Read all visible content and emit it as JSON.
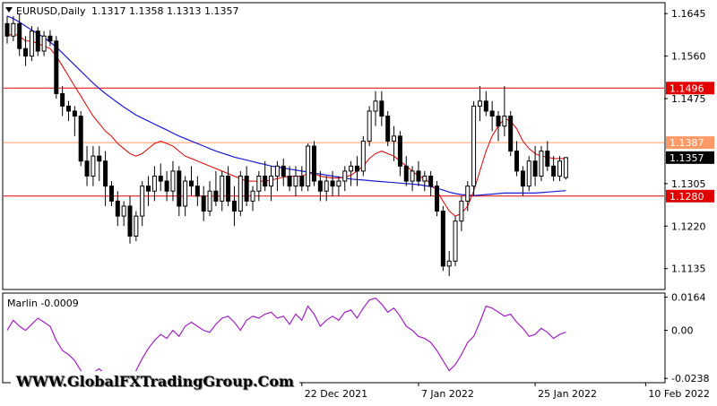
{
  "chart_header": {
    "symbol": "EURUSD,Daily",
    "ohlc": "1.1317 1.1358 1.1313 1.1357"
  },
  "indicator_label": "Marlin -0.0009",
  "watermark": "WWW.GlobalFXTradingGroup.Com",
  "colors": {
    "candle_border": "#000000",
    "bull_fill": "#ffffff",
    "bear_fill": "#000000",
    "ma_fast": "#e00000",
    "ma_slow": "#1a1ad0",
    "level_red": "#e00000",
    "level_salmon": "#ff9966",
    "oscillator": "#a020c0",
    "price_tag": "#000000"
  },
  "chart_data": [
    {
      "type": "candlestick",
      "title": "EURUSD,Daily",
      "y_range": [
        1.1095,
        1.1665
      ],
      "y_ticks": [
        1.1645,
        1.156,
        1.1475,
        1.1305,
        1.122,
        1.1135
      ],
      "x_labels": [
        "22 Dec 2021",
        "7 Jan 2022",
        "25 Jan 2022",
        "10 Feb 2022"
      ],
      "x_label_candle_index": [
        48,
        67,
        86,
        104
      ],
      "levels": [
        {
          "value": 1.1496,
          "label": "1.1496",
          "color": "#e00000",
          "tag_text": "#ffffff"
        },
        {
          "value": 1.1387,
          "label": "1.1387",
          "color": "#ff9966",
          "tag_text": "#ffffff"
        },
        {
          "value": 1.128,
          "label": "1.1280",
          "color": "#e00000",
          "tag_text": "#ffffff"
        }
      ],
      "current_price": {
        "value": 1.1357,
        "label": "1.1357"
      },
      "candles": [
        [
          1.1625,
          1.164,
          1.1585,
          1.16
        ],
        [
          1.16,
          1.164,
          1.159,
          1.1625
        ],
        [
          1.1625,
          1.1645,
          1.156,
          1.1575
        ],
        [
          1.1575,
          1.16,
          1.154,
          1.156
        ],
        [
          1.156,
          1.162,
          1.155,
          1.161
        ],
        [
          1.161,
          1.1618,
          1.156,
          1.157
        ],
        [
          1.157,
          1.161,
          1.156,
          1.16
        ],
        [
          1.16,
          1.1612,
          1.158,
          1.159
        ],
        [
          1.159,
          1.16,
          1.1475,
          1.1485
        ],
        [
          1.1485,
          1.15,
          1.144,
          1.146
        ],
        [
          1.146,
          1.147,
          1.143,
          1.145
        ],
        [
          1.145,
          1.146,
          1.14,
          1.144
        ],
        [
          1.144,
          1.145,
          1.134,
          1.135
        ],
        [
          1.135,
          1.138,
          1.13,
          1.132
        ],
        [
          1.132,
          1.138,
          1.13,
          1.136
        ],
        [
          1.136,
          1.138,
          1.131,
          1.135
        ],
        [
          1.135,
          1.137,
          1.126,
          1.13
        ],
        [
          1.13,
          1.131,
          1.126,
          1.127
        ],
        [
          1.127,
          1.129,
          1.122,
          1.124
        ],
        [
          1.124,
          1.127,
          1.122,
          1.126
        ],
        [
          1.126,
          1.128,
          1.1185,
          1.12
        ],
        [
          1.12,
          1.125,
          1.119,
          1.124
        ],
        [
          1.124,
          1.131,
          1.122,
          1.13
        ],
        [
          1.13,
          1.132,
          1.126,
          1.129
        ],
        [
          1.129,
          1.134,
          1.127,
          1.132
        ],
        [
          1.132,
          1.1345,
          1.129,
          1.131
        ],
        [
          1.131,
          1.133,
          1.127,
          1.129
        ],
        [
          1.129,
          1.135,
          1.127,
          1.133
        ],
        [
          1.133,
          1.134,
          1.124,
          1.126
        ],
        [
          1.126,
          1.132,
          1.124,
          1.131
        ],
        [
          1.131,
          1.134,
          1.128,
          1.13
        ],
        [
          1.13,
          1.132,
          1.126,
          1.128
        ],
        [
          1.128,
          1.13,
          1.123,
          1.125
        ],
        [
          1.125,
          1.131,
          1.124,
          1.129
        ],
        [
          1.129,
          1.133,
          1.126,
          1.127
        ],
        [
          1.127,
          1.133,
          1.125,
          1.132
        ],
        [
          1.132,
          1.134,
          1.126,
          1.127
        ],
        [
          1.127,
          1.13,
          1.122,
          1.125
        ],
        [
          1.125,
          1.133,
          1.124,
          1.132
        ],
        [
          1.132,
          1.134,
          1.126,
          1.127
        ],
        [
          1.127,
          1.13,
          1.125,
          1.129
        ],
        [
          1.129,
          1.133,
          1.127,
          1.132
        ],
        [
          1.132,
          1.135,
          1.129,
          1.13
        ],
        [
          1.13,
          1.134,
          1.127,
          1.132
        ],
        [
          1.132,
          1.135,
          1.129,
          1.134
        ],
        [
          1.134,
          1.1355,
          1.13,
          1.132
        ],
        [
          1.132,
          1.134,
          1.129,
          1.13
        ],
        [
          1.13,
          1.134,
          1.128,
          1.132
        ],
        [
          1.132,
          1.134,
          1.129,
          1.13
        ],
        [
          1.13,
          1.1385,
          1.129,
          1.138
        ],
        [
          1.138,
          1.139,
          1.13,
          1.131
        ],
        [
          1.131,
          1.133,
          1.127,
          1.129
        ],
        [
          1.129,
          1.132,
          1.127,
          1.131
        ],
        [
          1.131,
          1.133,
          1.128,
          1.13
        ],
        [
          1.13,
          1.132,
          1.128,
          1.131
        ],
        [
          1.131,
          1.134,
          1.129,
          1.133
        ],
        [
          1.133,
          1.135,
          1.13,
          1.134
        ],
        [
          1.134,
          1.136,
          1.13,
          1.133
        ],
        [
          1.133,
          1.14,
          1.132,
          1.139
        ],
        [
          1.139,
          1.146,
          1.138,
          1.145
        ],
        [
          1.145,
          1.149,
          1.142,
          1.147
        ],
        [
          1.147,
          1.149,
          1.142,
          1.144
        ],
        [
          1.144,
          1.145,
          1.138,
          1.139
        ],
        [
          1.139,
          1.142,
          1.135,
          1.14
        ],
        [
          1.14,
          1.141,
          1.132,
          1.134
        ],
        [
          1.134,
          1.136,
          1.13,
          1.131
        ],
        [
          1.131,
          1.134,
          1.129,
          1.133
        ],
        [
          1.133,
          1.135,
          1.13,
          1.131
        ],
        [
          1.131,
          1.133,
          1.129,
          1.132
        ],
        [
          1.132,
          1.133,
          1.128,
          1.13
        ],
        [
          1.13,
          1.131,
          1.124,
          1.125
        ],
        [
          1.125,
          1.126,
          1.113,
          1.114
        ],
        [
          1.114,
          1.117,
          1.112,
          1.115
        ],
        [
          1.115,
          1.124,
          1.114,
          1.123
        ],
        [
          1.123,
          1.128,
          1.121,
          1.127
        ],
        [
          1.127,
          1.131,
          1.125,
          1.13
        ],
        [
          1.13,
          1.147,
          1.128,
          1.146
        ],
        [
          1.146,
          1.15,
          1.143,
          1.147
        ],
        [
          1.147,
          1.149,
          1.144,
          1.145
        ],
        [
          1.145,
          1.147,
          1.141,
          1.144
        ],
        [
          1.144,
          1.145,
          1.139,
          1.142
        ],
        [
          1.142,
          1.15,
          1.14,
          1.144
        ],
        [
          1.144,
          1.145,
          1.136,
          1.137
        ],
        [
          1.137,
          1.139,
          1.132,
          1.133
        ],
        [
          1.133,
          1.134,
          1.128,
          1.13
        ],
        [
          1.13,
          1.136,
          1.129,
          1.135
        ],
        [
          1.135,
          1.138,
          1.13,
          1.132
        ],
        [
          1.132,
          1.138,
          1.131,
          1.137
        ],
        [
          1.137,
          1.139,
          1.133,
          1.134
        ],
        [
          1.134,
          1.136,
          1.131,
          1.132
        ],
        [
          1.132,
          1.136,
          1.131,
          1.135
        ],
        [
          1.1317,
          1.1358,
          1.1313,
          1.1357
        ]
      ],
      "ma_fast": [
        1.16,
        1.1605,
        1.16,
        1.159,
        1.159,
        1.1585,
        1.158,
        1.1575,
        1.156,
        1.154,
        1.152,
        1.15,
        1.148,
        1.146,
        1.144,
        1.1425,
        1.141,
        1.14,
        1.1385,
        1.1375,
        1.1365,
        1.136,
        1.1365,
        1.1375,
        1.1385,
        1.139,
        1.1385,
        1.138,
        1.137,
        1.136,
        1.1355,
        1.135,
        1.1345,
        1.134,
        1.1335,
        1.133,
        1.1325,
        1.132,
        1.1315,
        1.131,
        1.131,
        1.131,
        1.131,
        1.1312,
        1.1315,
        1.1318,
        1.132,
        1.132,
        1.132,
        1.1325,
        1.1325,
        1.132,
        1.1318,
        1.1316,
        1.1316,
        1.1318,
        1.1322,
        1.133,
        1.134,
        1.1355,
        1.1365,
        1.137,
        1.1365,
        1.136,
        1.135,
        1.134,
        1.133,
        1.132,
        1.1315,
        1.1305,
        1.129,
        1.127,
        1.125,
        1.124,
        1.1245,
        1.126,
        1.129,
        1.133,
        1.137,
        1.14,
        1.142,
        1.1435,
        1.143,
        1.1415,
        1.139,
        1.1375,
        1.1365,
        1.136,
        1.1358,
        1.1355,
        1.1355,
        1.1355
      ],
      "ma_slow": [
        1.164,
        1.1635,
        1.1628,
        1.162,
        1.1612,
        1.1605,
        1.1597,
        1.1588,
        1.1578,
        1.1566,
        1.1554,
        1.1542,
        1.153,
        1.1518,
        1.1506,
        1.1495,
        1.1485,
        1.1476,
        1.1467,
        1.1458,
        1.145,
        1.1442,
        1.1436,
        1.143,
        1.1424,
        1.1418,
        1.1412,
        1.1406,
        1.14,
        1.1395,
        1.139,
        1.1385,
        1.138,
        1.1375,
        1.137,
        1.1366,
        1.1362,
        1.1358,
        1.1355,
        1.1352,
        1.1349,
        1.1346,
        1.1343,
        1.134,
        1.1338,
        1.1336,
        1.1334,
        1.1332,
        1.133,
        1.1328,
        1.1326,
        1.1324,
        1.1322,
        1.132,
        1.1318,
        1.1316,
        1.1314,
        1.1313,
        1.1312,
        1.1311,
        1.131,
        1.1309,
        1.1308,
        1.1307,
        1.1306,
        1.1305,
        1.1304,
        1.1303,
        1.1301,
        1.1299,
        1.1296,
        1.1292,
        1.1288,
        1.1285,
        1.1283,
        1.1282,
        1.1281,
        1.1282,
        1.1283,
        1.1284,
        1.1285,
        1.1286,
        1.1286,
        1.1286,
        1.1286,
        1.1286,
        1.1286,
        1.1287,
        1.1288,
        1.1289,
        1.129,
        1.1291
      ]
    },
    {
      "type": "line",
      "title": "Marlin -0.0009",
      "y_range": [
        -0.0255,
        0.018
      ],
      "y_ticks": [
        0.0164,
        0.0,
        -0.0238
      ],
      "y_tick_labels": [
        "0.0164",
        "0.00",
        "-0.0238"
      ],
      "values": [
        0.0,
        0.005,
        0.002,
        0.0,
        0.003,
        0.006,
        0.004,
        0.002,
        -0.005,
        -0.01,
        -0.012,
        -0.015,
        -0.02,
        -0.023,
        -0.021,
        -0.019,
        -0.022,
        -0.025,
        -0.027,
        -0.024,
        -0.026,
        -0.02,
        -0.014,
        -0.009,
        -0.005,
        -0.002,
        -0.004,
        0.0,
        -0.003,
        0.002,
        0.004,
        0.002,
        0.0,
        -0.001,
        0.003,
        0.006,
        0.007,
        0.004,
        0.0,
        0.005,
        0.007,
        0.006,
        0.008,
        0.009,
        0.006,
        0.007,
        0.003,
        0.008,
        0.005,
        0.012,
        0.008,
        0.002,
        0.005,
        0.007,
        0.005,
        0.009,
        0.01,
        0.006,
        0.011,
        0.015,
        0.016,
        0.013,
        0.009,
        0.011,
        0.007,
        0.002,
        0.0,
        -0.003,
        -0.004,
        -0.006,
        -0.01,
        -0.015,
        -0.02,
        -0.017,
        -0.012,
        -0.006,
        -0.003,
        0.004,
        0.012,
        0.011,
        0.009,
        0.007,
        0.008,
        0.004,
        0.001,
        -0.003,
        -0.002,
        0.001,
        -0.001,
        -0.004,
        -0.002,
        -0.0009
      ]
    }
  ]
}
